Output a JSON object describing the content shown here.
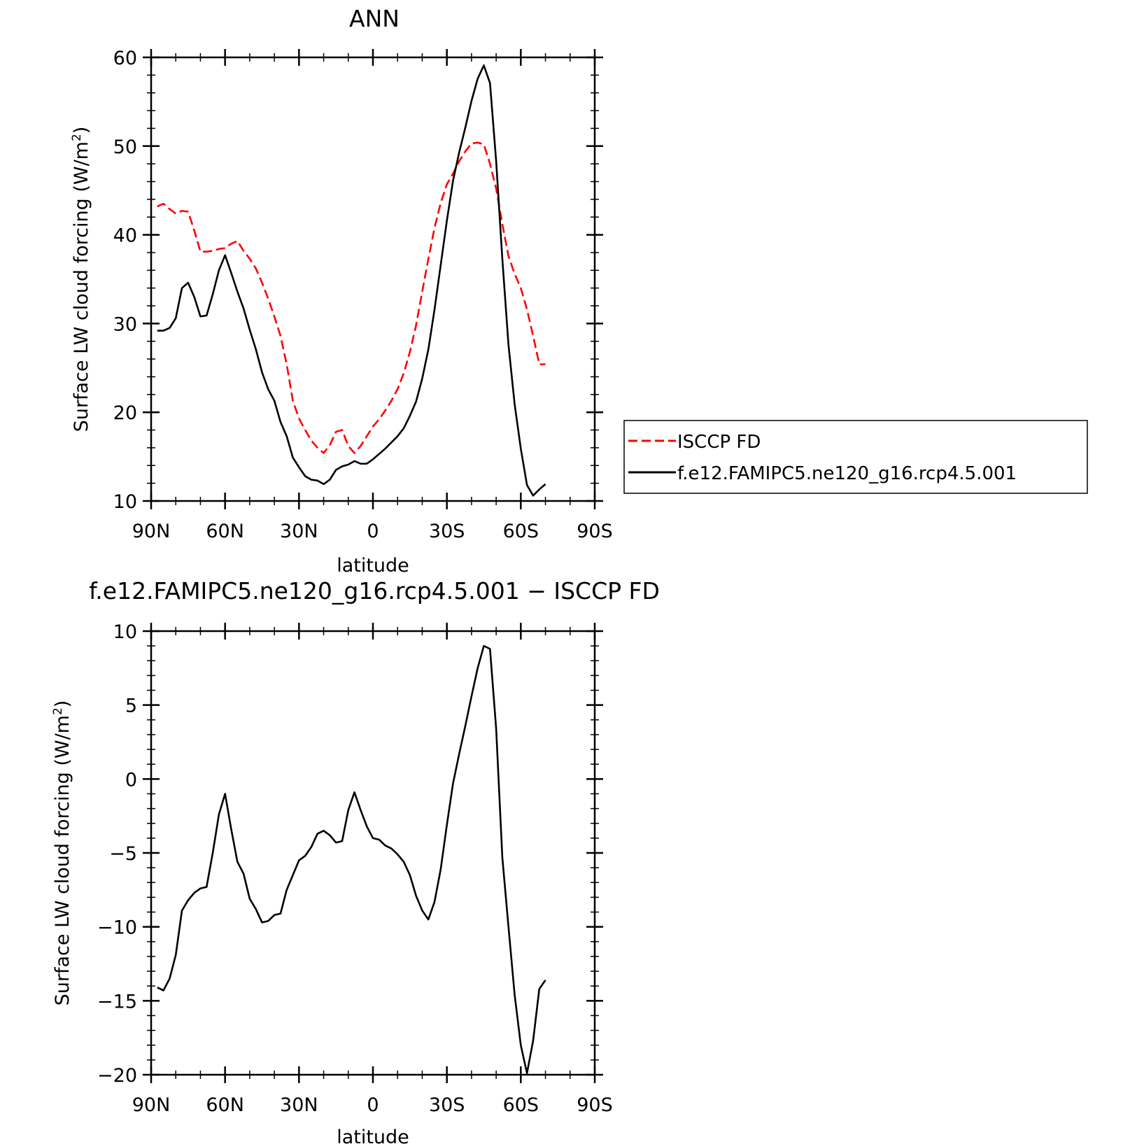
{
  "chart_data": [
    {
      "type": "line",
      "title": "ANN",
      "xlabel": "latitude",
      "ylabel": "Surface LW cloud forcing (W/m²)",
      "ylabel_main": "Surface LW cloud forcing (W/m",
      "ylabel_sup": "2",
      "ylabel_close": ")",
      "xlim": [
        90,
        -90
      ],
      "ylim": [
        10,
        60
      ],
      "yticks": [
        10,
        20,
        30,
        40,
        50,
        60
      ],
      "ytick_labels": [
        "10",
        "20",
        "30",
        "40",
        "50",
        "60"
      ],
      "xticks": [
        90,
        60,
        30,
        0,
        -30,
        -60,
        -90
      ],
      "xtick_labels": [
        "90N",
        "60N",
        "30N",
        "0",
        "30S",
        "60S",
        "90S"
      ],
      "legend_position": "right",
      "series": [
        {
          "name": "ISCCP FD",
          "color": "#ff0000",
          "dash": "dashed",
          "x": [
            87.5,
            85,
            82.5,
            80,
            77.5,
            75,
            72.5,
            70,
            67.5,
            65,
            62.5,
            60,
            57.5,
            55,
            52.5,
            50,
            47.5,
            45,
            42.5,
            40,
            37.5,
            35,
            32.5,
            30,
            27.5,
            25,
            22.5,
            20,
            17.5,
            15,
            12.5,
            10,
            7.5,
            5,
            2.5,
            0,
            -2.5,
            -5,
            -7.5,
            -10,
            -12.5,
            -15,
            -17.5,
            -20,
            -22.5,
            -25,
            -27.5,
            -30,
            -32.5,
            -35,
            -37.5,
            -40,
            -42.5,
            -45,
            -47.5,
            -50,
            -52.5,
            -55,
            -57.5,
            -60,
            -62.5,
            -65,
            -67.5,
            -70,
            -72.5,
            -75,
            -77.5,
            -80,
            -82.5,
            -85,
            -87.5
          ],
          "y": [
            43.2,
            43.5,
            42.9,
            42.4,
            42.7,
            42.6,
            40.5,
            38.1,
            38.1,
            38.2,
            38.4,
            38.5,
            39.0,
            39.3,
            38.2,
            37.3,
            36.2,
            34.6,
            32.8,
            30.8,
            28.6,
            25.4,
            21.3,
            19.3,
            18.0,
            16.8,
            16.0,
            15.4,
            16.3,
            17.8,
            18.0,
            16.2,
            15.4,
            16.2,
            17.3,
            18.4,
            19.2,
            20.2,
            21.3,
            22.6,
            24.4,
            26.8,
            29.8,
            33.6,
            37.3,
            40.8,
            43.6,
            45.7,
            46.9,
            48.3,
            49.4,
            50.3,
            50.4,
            50.2,
            48.0,
            45.2,
            41.2,
            37.6,
            35.6,
            34.0,
            31.6,
            28.6,
            25.4,
            25.4,
            null,
            null,
            null,
            null,
            null,
            null,
            null
          ]
        },
        {
          "name": "f.e12.FAMIPC5.ne120_g16.rcp4.5.001",
          "color": "#000000",
          "dash": "solid",
          "x": [
            87.5,
            85,
            82.5,
            80,
            77.5,
            75,
            72.5,
            70,
            67.5,
            65,
            62.5,
            60,
            57.5,
            55,
            52.5,
            50,
            47.5,
            45,
            42.5,
            40,
            37.5,
            35,
            32.5,
            30,
            27.5,
            25,
            22.5,
            20,
            17.5,
            15,
            12.5,
            10,
            7.5,
            5,
            2.5,
            0,
            -2.5,
            -5,
            -7.5,
            -10,
            -12.5,
            -15,
            -17.5,
            -20,
            -22.5,
            -25,
            -27.5,
            -30,
            -32.5,
            -35,
            -37.5,
            -40,
            -42.5,
            -45,
            -47.5,
            -50,
            -52.5,
            -55,
            -57.5,
            -60,
            -62.5,
            -65,
            -67.5,
            -70,
            -72.5,
            -75,
            -77.5,
            -80,
            -82.5,
            -85,
            -87.5
          ],
          "y": [
            29.2,
            29.2,
            29.5,
            30.6,
            34.0,
            34.6,
            33.0,
            30.8,
            30.9,
            33.3,
            36.0,
            37.7,
            35.7,
            33.6,
            31.7,
            29.3,
            27.1,
            24.5,
            22.6,
            21.3,
            18.9,
            17.3,
            14.9,
            13.8,
            12.8,
            12.4,
            12.3,
            11.9,
            12.4,
            13.5,
            13.9,
            14.1,
            14.5,
            14.2,
            14.2,
            14.7,
            15.3,
            15.9,
            16.6,
            17.3,
            18.2,
            19.6,
            21.2,
            23.8,
            27.1,
            31.6,
            36.6,
            41.6,
            46.1,
            49.3,
            52.1,
            55.1,
            57.6,
            59.1,
            57.1,
            48.3,
            37.3,
            27.6,
            20.9,
            15.9,
            11.8,
            10.6,
            11.3,
            11.9,
            null,
            null,
            null,
            null,
            null,
            null,
            null
          ]
        }
      ]
    },
    {
      "type": "line",
      "title": "f.e12.FAMIPC5.ne120_g16.rcp4.5.001 − ISCCP FD",
      "xlabel": "latitude",
      "ylabel": "Surface LW cloud forcing (W/m²)",
      "ylabel_main": "Surface LW cloud forcing (W/m",
      "ylabel_sup": "2",
      "ylabel_close": ")",
      "xlim": [
        90,
        -90
      ],
      "ylim": [
        -20,
        10
      ],
      "yticks": [
        -20,
        -15,
        -10,
        -5,
        0,
        5,
        10
      ],
      "ytick_labels": [
        "−20",
        "−15",
        "−10",
        "−5",
        "0",
        "5",
        "10"
      ],
      "xticks": [
        90,
        60,
        30,
        0,
        -30,
        -60,
        -90
      ],
      "xtick_labels": [
        "90N",
        "60N",
        "30N",
        "0",
        "30S",
        "60S",
        "90S"
      ],
      "series": [
        {
          "color": "#000000",
          "dash": "solid",
          "x": [
            87.5,
            85,
            82.5,
            80,
            77.5,
            75,
            72.5,
            70,
            67.5,
            65,
            62.5,
            60,
            57.5,
            55,
            52.5,
            50,
            47.5,
            45,
            42.5,
            40,
            37.5,
            35,
            32.5,
            30,
            27.5,
            25,
            22.5,
            20,
            17.5,
            15,
            12.5,
            10,
            7.5,
            5,
            2.5,
            0,
            -2.5,
            -5,
            -7.5,
            -10,
            -12.5,
            -15,
            -17.5,
            -20,
            -22.5,
            -25,
            -27.5,
            -30,
            -32.5,
            -35,
            -37.5,
            -40,
            -42.5,
            -45,
            -47.5,
            -50,
            -52.5,
            -55,
            -57.5,
            -60,
            -62.5,
            -65,
            -67.5,
            -70,
            -72.5,
            -75,
            -77.5,
            -80,
            -82.5,
            -85,
            -87.5
          ],
          "y": [
            -14.1,
            -14.3,
            -13.5,
            -11.9,
            -8.9,
            -8.2,
            -7.7,
            -7.4,
            -7.3,
            -5.0,
            -2.4,
            -1.0,
            -3.4,
            -5.6,
            -6.4,
            -8.1,
            -8.8,
            -9.7,
            -9.6,
            -9.2,
            -9.1,
            -7.5,
            -6.5,
            -5.5,
            -5.2,
            -4.6,
            -3.7,
            -3.5,
            -3.8,
            -4.3,
            -4.2,
            -2.1,
            -0.9,
            -2.1,
            -3.2,
            -4.0,
            -4.1,
            -4.5,
            -4.7,
            -5.1,
            -5.6,
            -6.5,
            -7.9,
            -8.9,
            -9.5,
            -8.3,
            -6.1,
            -3.1,
            -0.3,
            1.7,
            3.6,
            5.6,
            7.5,
            9.0,
            8.8,
            3.4,
            -5.3,
            -10.0,
            -14.6,
            -18.0,
            -19.9,
            -17.7,
            -14.2,
            -13.6,
            null,
            null,
            null,
            null,
            null,
            null,
            null
          ]
        }
      ]
    }
  ]
}
